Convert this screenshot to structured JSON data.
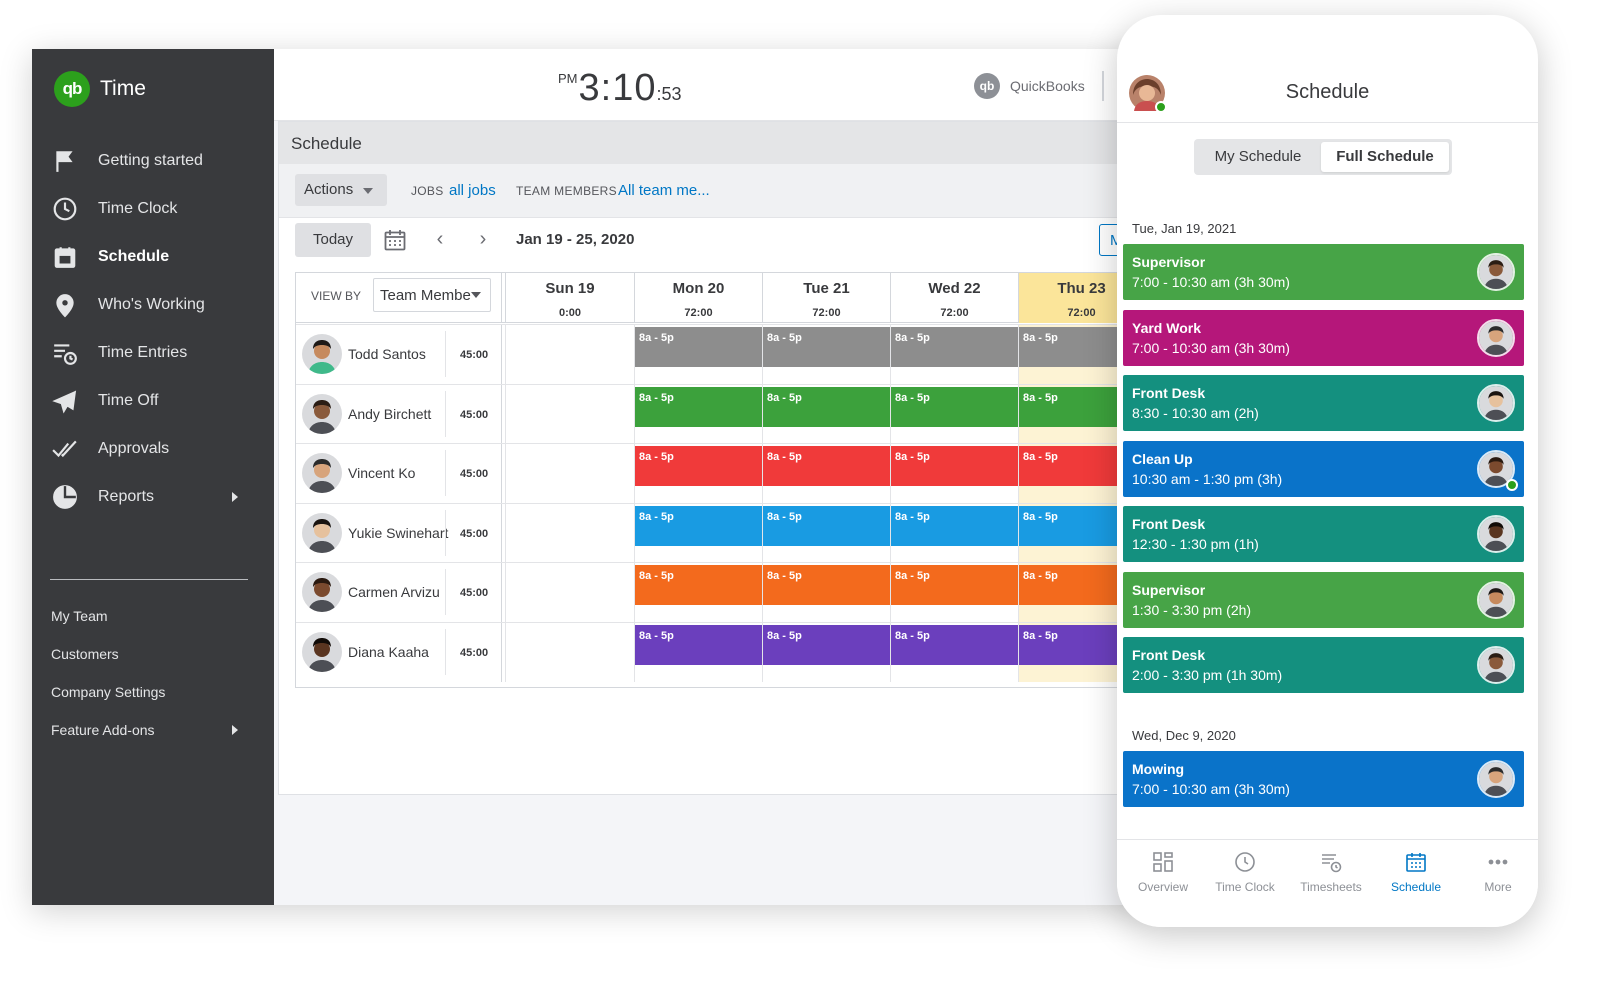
{
  "app": {
    "name": "Time",
    "logo": "qb"
  },
  "sidebar": {
    "items": [
      {
        "label": "Getting started",
        "icon": "flag-icon"
      },
      {
        "label": "Time Clock",
        "icon": "clock-icon"
      },
      {
        "label": "Schedule",
        "icon": "calendar-icon",
        "active": true
      },
      {
        "label": "Who's Working",
        "icon": "location-pin-icon"
      },
      {
        "label": "Time Entries",
        "icon": "list-clock-icon"
      },
      {
        "label": "Time Off",
        "icon": "airplane-icon"
      },
      {
        "label": "Approvals",
        "icon": "double-check-icon"
      },
      {
        "label": "Reports",
        "icon": "pie-chart-icon",
        "has_submenu": true
      }
    ],
    "secondary": [
      {
        "label": "My Team"
      },
      {
        "label": "Customers"
      },
      {
        "label": "Company Settings"
      },
      {
        "label": "Feature Add-ons",
        "has_submenu": true
      }
    ]
  },
  "topbar": {
    "clock": {
      "ampm": "PM",
      "hm": "3:10",
      "sec": ":53"
    },
    "brand": "QuickBooks",
    "brand_logo": "qb"
  },
  "schedule": {
    "title": "Schedule",
    "actions_label": "Actions",
    "jobs_label": "JOBS",
    "jobs_value": "all jobs",
    "team_label": "TEAM MEMBERS",
    "team_value": "All team me...",
    "today_label": "Today",
    "date_range": "Jan 19 - 25, 2020",
    "my_button": "My",
    "view_by_label": "VIEW BY",
    "view_by_value": "Team Membe",
    "days": [
      {
        "name": "Sun 19",
        "total": "0:00"
      },
      {
        "name": "Mon 20",
        "total": "72:00"
      },
      {
        "name": "Tue 21",
        "total": "72:00"
      },
      {
        "name": "Wed 22",
        "total": "72:00"
      },
      {
        "name": "Thu 23",
        "total": "72:00",
        "highlight": true
      }
    ],
    "shift_label": "8a - 5p",
    "employees": [
      {
        "name": "Todd Santos",
        "hours": "45:00",
        "color": "#8d8d8d"
      },
      {
        "name": "Andy Birchett",
        "hours": "45:00",
        "color": "#3ca13c"
      },
      {
        "name": "Vincent Ko",
        "hours": "45:00",
        "color": "#f03a3a"
      },
      {
        "name": "Yukie Swinehart",
        "hours": "45:00",
        "color": "#199be2"
      },
      {
        "name": "Carmen Arvizu",
        "hours": "45:00",
        "color": "#f36a1d"
      },
      {
        "name": "Diana Kaaha",
        "hours": "45:00",
        "color": "#6b3fbd"
      }
    ]
  },
  "phone": {
    "title": "Schedule",
    "segments": [
      {
        "label": "My Schedule"
      },
      {
        "label": "Full Schedule",
        "selected": true
      }
    ],
    "groups": [
      {
        "date": "Tue, Jan 19, 2021",
        "shifts": [
          {
            "title": "Supervisor",
            "time": "7:00 - 10:30 am (3h 30m)",
            "color": "#47a447"
          },
          {
            "title": "Yard Work",
            "time": "7:00 - 10:30 am (3h 30m)",
            "color": "#b5177a"
          },
          {
            "title": "Front Desk",
            "time": "8:30 - 10:30 am (2h)",
            "color": "#14907f"
          },
          {
            "title": "Clean Up",
            "time": "10:30 am - 1:30 pm (3h)",
            "color": "#0a73c9"
          },
          {
            "title": "Front Desk",
            "time": "12:30 - 1:30 pm (1h)",
            "color": "#14907f"
          },
          {
            "title": "Supervisor",
            "time": "1:30 - 3:30 pm (2h)",
            "color": "#47a447"
          },
          {
            "title": "Front Desk",
            "time": "2:00 - 3:30 pm (1h 30m)",
            "color": "#14907f"
          }
        ]
      },
      {
        "date": "Wed, Dec 9, 2020",
        "shifts": [
          {
            "title": "Mowing",
            "time": "7:00 - 10:30 am (3h 30m)",
            "color": "#0a73c9"
          }
        ]
      }
    ],
    "tabs": [
      {
        "label": "Overview",
        "icon": "grid-icon"
      },
      {
        "label": "Time Clock",
        "icon": "clock-icon"
      },
      {
        "label": "Timesheets",
        "icon": "timesheet-icon"
      },
      {
        "label": "Schedule",
        "icon": "calendar-icon",
        "active": true
      },
      {
        "label": "More",
        "icon": "more-icon"
      }
    ]
  }
}
